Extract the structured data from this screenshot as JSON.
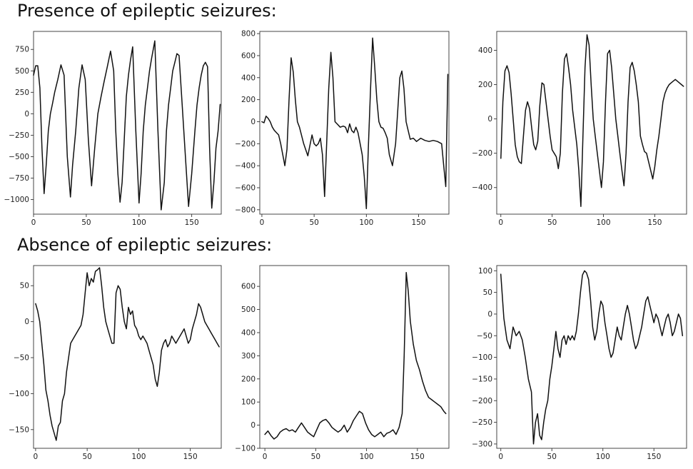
{
  "sections": [
    {
      "title": "Presence of epileptic seizures:"
    },
    {
      "title": "Absence of epileptic seizures:"
    }
  ],
  "chart_data": [
    {
      "type": "line",
      "xlim": [
        0,
        178
      ],
      "xticks": [
        0,
        50,
        100,
        150
      ],
      "ylim": [
        -1170,
        960
      ],
      "yticks": [
        750,
        500,
        250,
        0,
        -250,
        -500,
        -750,
        -1000
      ],
      "grid": false,
      "x": [
        0,
        2,
        4,
        6,
        8,
        10,
        12,
        14,
        16,
        18,
        20,
        23,
        26,
        29,
        32,
        35,
        37,
        40,
        43,
        46,
        49,
        52,
        55,
        58,
        61,
        64,
        67,
        70,
        73,
        76,
        78,
        80,
        82,
        84,
        86,
        88,
        90,
        92,
        94,
        97,
        100,
        102,
        104,
        106,
        108,
        110,
        112,
        115,
        118,
        121,
        124,
        126,
        128,
        130,
        132,
        134,
        136,
        138,
        141,
        144,
        147,
        150,
        153,
        155,
        157,
        159,
        161,
        163,
        165,
        167,
        169,
        171,
        173,
        175,
        177
      ],
      "values": [
        450,
        560,
        560,
        300,
        -400,
        -930,
        -600,
        -200,
        0,
        120,
        250,
        400,
        570,
        450,
        -500,
        -970,
        -600,
        -200,
        300,
        570,
        400,
        -300,
        -840,
        -400,
        0,
        200,
        380,
        550,
        730,
        500,
        -200,
        -700,
        -1030,
        -800,
        -300,
        200,
        450,
        630,
        780,
        -200,
        -1040,
        -700,
        -200,
        100,
        300,
        500,
        650,
        850,
        -200,
        -1120,
        -800,
        -200,
        100,
        300,
        500,
        600,
        700,
        680,
        100,
        -500,
        -1080,
        -700,
        -200,
        100,
        300,
        450,
        560,
        600,
        550,
        -400,
        -1100,
        -800,
        -400,
        -200,
        110
      ]
    },
    {
      "type": "line",
      "xlim": [
        -2,
        179
      ],
      "xticks": [
        0,
        50,
        100,
        150
      ],
      "ylim": [
        -840,
        820
      ],
      "yticks": [
        800,
        600,
        400,
        200,
        0,
        -200,
        -400,
        -600,
        -800
      ],
      "grid": false,
      "x": [
        0,
        2,
        4,
        6,
        8,
        10,
        12,
        14,
        16,
        18,
        20,
        22,
        24,
        26,
        28,
        30,
        32,
        34,
        36,
        40,
        44,
        48,
        50,
        52,
        54,
        56,
        58,
        60,
        62,
        64,
        66,
        68,
        70,
        72,
        75,
        78,
        80,
        82,
        84,
        86,
        88,
        90,
        92,
        94,
        96,
        98,
        100,
        102,
        104,
        106,
        108,
        110,
        112,
        114,
        116,
        118,
        120,
        122,
        125,
        128,
        130,
        132,
        134,
        136,
        138,
        140,
        142,
        145,
        148,
        152,
        156,
        160,
        164,
        168,
        172,
        174,
        176,
        178
      ],
      "values": [
        0,
        -10,
        50,
        30,
        0,
        -50,
        -80,
        -100,
        -120,
        -200,
        -300,
        -400,
        -250,
        200,
        580,
        450,
        200,
        0,
        -50,
        -200,
        -310,
        -120,
        -200,
        -220,
        -200,
        -150,
        -300,
        -680,
        -200,
        300,
        630,
        400,
        0,
        -20,
        -50,
        -40,
        -50,
        -100,
        -20,
        -80,
        -100,
        -50,
        -100,
        -200,
        -300,
        -500,
        -790,
        -200,
        300,
        760,
        500,
        200,
        0,
        -50,
        -60,
        -100,
        -150,
        -300,
        -400,
        -200,
        100,
        400,
        460,
        300,
        0,
        -80,
        -160,
        -150,
        -180,
        -150,
        -170,
        -180,
        -170,
        -180,
        -200,
        -400,
        -590,
        430
      ]
    },
    {
      "type": "line",
      "xlim": [
        -4,
        181
      ],
      "xticks": [
        0,
        50,
        100,
        150
      ],
      "ylim": [
        -555,
        510
      ],
      "yticks": [
        400,
        200,
        0,
        -200,
        -400
      ],
      "grid": false,
      "x": [
        0,
        2,
        4,
        6,
        8,
        10,
        12,
        14,
        16,
        18,
        20,
        22,
        24,
        26,
        28,
        30,
        32,
        34,
        36,
        38,
        40,
        42,
        44,
        46,
        48,
        50,
        52,
        54,
        56,
        58,
        60,
        62,
        64,
        66,
        68,
        70,
        72,
        74,
        76,
        78,
        80,
        82,
        84,
        86,
        88,
        90,
        92,
        94,
        96,
        98,
        100,
        102,
        104,
        106,
        108,
        110,
        112,
        114,
        116,
        118,
        120,
        122,
        124,
        126,
        128,
        130,
        132,
        134,
        136,
        138,
        140,
        142,
        144,
        146,
        148,
        150,
        152,
        154,
        156,
        158,
        160,
        162,
        164,
        166,
        168,
        170,
        172,
        174,
        176,
        178
      ],
      "values": [
        -230,
        100,
        280,
        310,
        270,
        150,
        0,
        -150,
        -220,
        -250,
        -260,
        -100,
        50,
        100,
        60,
        -50,
        -150,
        -180,
        -130,
        80,
        210,
        200,
        100,
        0,
        -100,
        -180,
        -200,
        -220,
        -290,
        -200,
        150,
        350,
        380,
        300,
        200,
        50,
        -50,
        -150,
        -300,
        -510,
        -100,
        300,
        490,
        430,
        200,
        0,
        -100,
        -200,
        -300,
        -400,
        -250,
        100,
        380,
        400,
        300,
        150,
        0,
        -100,
        -200,
        -300,
        -390,
        -200,
        100,
        300,
        330,
        280,
        200,
        100,
        -100,
        -150,
        -190,
        -200,
        -250,
        -300,
        -350,
        -280,
        -180,
        -100,
        0,
        100,
        150,
        180,
        200,
        210,
        220,
        230,
        220,
        210,
        200,
        190
      ]
    },
    {
      "type": "line",
      "xlim": [
        -2,
        180
      ],
      "xticks": [
        0,
        50,
        100,
        150
      ],
      "ylim": [
        -176,
        78
      ],
      "yticks": [
        50,
        0,
        -50,
        -100,
        -150
      ],
      "grid": false,
      "x": [
        0,
        2,
        4,
        6,
        8,
        10,
        12,
        14,
        16,
        18,
        20,
        22,
        24,
        26,
        28,
        30,
        32,
        34,
        36,
        38,
        40,
        42,
        44,
        46,
        48,
        50,
        52,
        54,
        56,
        58,
        60,
        62,
        64,
        66,
        68,
        70,
        72,
        74,
        76,
        78,
        80,
        82,
        84,
        86,
        88,
        90,
        92,
        94,
        96,
        98,
        100,
        102,
        104,
        106,
        108,
        110,
        112,
        114,
        116,
        118,
        120,
        122,
        124,
        126,
        128,
        130,
        132,
        134,
        136,
        138,
        140,
        142,
        144,
        146,
        148,
        150,
        152,
        154,
        156,
        158,
        160,
        162,
        164,
        166,
        168,
        170,
        172,
        174,
        176,
        178
      ],
      "values": [
        25,
        15,
        0,
        -30,
        -60,
        -95,
        -110,
        -130,
        -145,
        -155,
        -165,
        -145,
        -140,
        -110,
        -100,
        -70,
        -50,
        -30,
        -25,
        -20,
        -15,
        -10,
        -5,
        10,
        40,
        68,
        50,
        60,
        55,
        70,
        72,
        75,
        50,
        20,
        0,
        -10,
        -20,
        -30,
        -30,
        40,
        50,
        45,
        20,
        0,
        -10,
        20,
        10,
        15,
        -5,
        -10,
        -20,
        -25,
        -20,
        -25,
        -30,
        -40,
        -50,
        -60,
        -80,
        -90,
        -70,
        -40,
        -30,
        -25,
        -35,
        -30,
        -20,
        -25,
        -30,
        -25,
        -20,
        -15,
        -10,
        -20,
        -30,
        -25,
        -10,
        0,
        10,
        25,
        20,
        10,
        0,
        -5,
        -10,
        -15,
        -20,
        -25,
        -30,
        -35
      ]
    },
    {
      "type": "line",
      "xlim": [
        -5,
        181
      ],
      "xticks": [
        0,
        50,
        100,
        150
      ],
      "ylim": [
        -100,
        690
      ],
      "yticks": [
        600,
        500,
        400,
        300,
        200,
        100,
        0,
        -100
      ],
      "grid": false,
      "x": [
        0,
        3,
        6,
        9,
        12,
        15,
        18,
        21,
        24,
        27,
        30,
        33,
        36,
        39,
        42,
        45,
        48,
        51,
        54,
        57,
        60,
        63,
        66,
        69,
        72,
        75,
        78,
        81,
        84,
        87,
        90,
        93,
        96,
        99,
        102,
        105,
        108,
        111,
        114,
        117,
        120,
        123,
        126,
        129,
        132,
        135,
        137,
        139,
        141,
        143,
        146,
        149,
        152,
        155,
        158,
        161,
        164,
        167,
        170,
        173,
        176,
        178
      ],
      "values": [
        -40,
        -25,
        -45,
        -60,
        -50,
        -30,
        -20,
        -15,
        -25,
        -20,
        -30,
        -10,
        10,
        -10,
        -30,
        -40,
        -50,
        -20,
        10,
        20,
        25,
        10,
        -10,
        -20,
        -30,
        -20,
        0,
        -30,
        -10,
        20,
        40,
        60,
        50,
        10,
        -20,
        -40,
        -50,
        -40,
        -30,
        -50,
        -35,
        -30,
        -20,
        -40,
        -10,
        50,
        300,
        660,
        580,
        450,
        350,
        280,
        240,
        190,
        150,
        120,
        110,
        100,
        90,
        80,
        60,
        50
      ]
    },
    {
      "type": "line",
      "xlim": [
        -4,
        182
      ],
      "xticks": [
        0,
        50,
        100,
        150
      ],
      "ylim": [
        -310,
        112
      ],
      "yticks": [
        100,
        50,
        0,
        -50,
        -100,
        -150,
        -200,
        -250,
        -300
      ],
      "grid": false,
      "x": [
        0,
        3,
        6,
        9,
        12,
        15,
        18,
        21,
        24,
        27,
        30,
        32,
        34,
        36,
        38,
        40,
        42,
        44,
        46,
        48,
        50,
        52,
        54,
        56,
        58,
        60,
        62,
        64,
        66,
        68,
        70,
        72,
        74,
        76,
        78,
        80,
        82,
        84,
        86,
        88,
        90,
        92,
        94,
        96,
        98,
        100,
        102,
        104,
        106,
        108,
        110,
        112,
        114,
        116,
        118,
        120,
        122,
        124,
        126,
        128,
        130,
        132,
        134,
        136,
        138,
        140,
        142,
        144,
        146,
        148,
        150,
        152,
        154,
        156,
        158,
        160,
        162,
        164,
        166,
        168,
        170,
        172,
        174,
        176,
        178
      ],
      "values": [
        92,
        -10,
        -60,
        -80,
        -30,
        -50,
        -40,
        -60,
        -100,
        -150,
        -180,
        -300,
        -250,
        -230,
        -280,
        -290,
        -250,
        -220,
        -200,
        -150,
        -120,
        -80,
        -40,
        -80,
        -100,
        -60,
        -50,
        -70,
        -50,
        -60,
        -50,
        -60,
        -40,
        0,
        50,
        90,
        100,
        95,
        80,
        30,
        -30,
        -60,
        -40,
        0,
        30,
        20,
        -20,
        -50,
        -80,
        -100,
        -90,
        -60,
        -30,
        -50,
        -60,
        -30,
        0,
        20,
        0,
        -30,
        -60,
        -80,
        -70,
        -50,
        -30,
        0,
        30,
        40,
        20,
        0,
        -20,
        0,
        -10,
        -30,
        -50,
        -30,
        -10,
        0,
        -20,
        -50,
        -40,
        -20,
        0,
        -10,
        -50
      ]
    }
  ]
}
